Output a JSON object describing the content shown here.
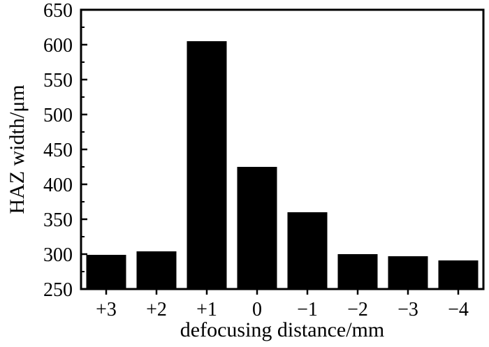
{
  "chart_data": {
    "type": "bar",
    "categories": [
      "+3",
      "+2",
      "+1",
      "0",
      "−1",
      "−2",
      "−3",
      "−4"
    ],
    "values": [
      299,
      304,
      605,
      425,
      360,
      300,
      297,
      291
    ],
    "xlabel": "defocusing distance/mm",
    "ylabel": "HAZ width/μm",
    "ylim": [
      250,
      650
    ],
    "yticks": [
      250,
      300,
      350,
      400,
      450,
      500,
      550,
      600,
      650
    ],
    "ytick_labels": [
      "250",
      "300",
      "350",
      "400",
      "450",
      "500",
      "550",
      "600",
      "650"
    ],
    "bar_color": "#000000",
    "grid": false,
    "legend": "none"
  }
}
